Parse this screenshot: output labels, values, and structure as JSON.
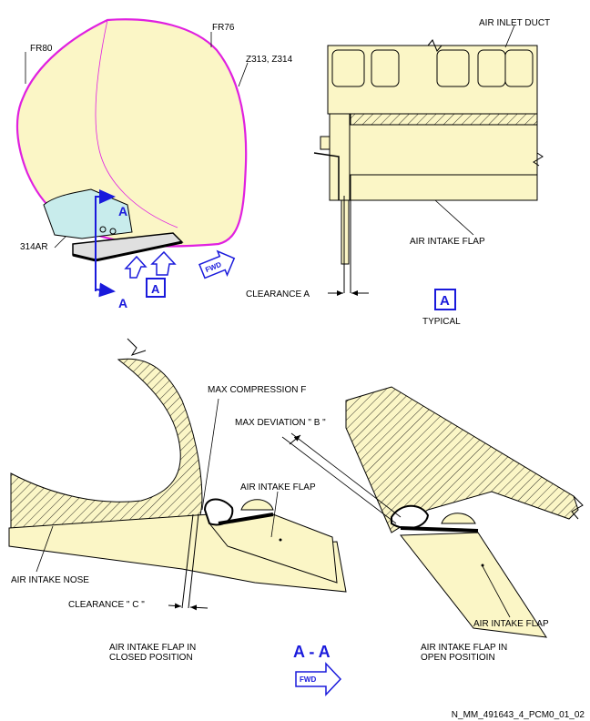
{
  "top_left": {
    "frame_labels": [
      "FR80",
      "FR76",
      "Z313, Z314",
      "314AR"
    ],
    "section_marks": [
      "A",
      "A"
    ],
    "detail_box": "A",
    "fwd_badge": "FWD"
  },
  "detail_a": {
    "labels": [
      "AIR INLET DUCT",
      "AIR INTAKE FLAP",
      "CLEARANCE A"
    ],
    "box_letter": "A",
    "caption": "TYPICAL"
  },
  "section_aa": {
    "labels": [
      "MAX COMPRESSION F",
      "MAX DEVIATION \" B \"",
      "AIR INTAKE FLAP",
      "AIR INTAKE NOSE",
      "CLEARANCE \" C \"",
      "AIR INTAKE FLAP"
    ],
    "closed_caption": [
      "AIR INTAKE FLAP IN",
      "CLOSED POSITION"
    ],
    "open_caption": [
      "AIR INTAKE FLAP IN",
      "OPEN POSITIOIN"
    ],
    "title": "A - A",
    "fwd_arrow": "FWD"
  },
  "footer": {
    "reference": "N_MM_491643_4_PCM0_01_02"
  },
  "colors": {
    "fill": "#fbf6c6",
    "accent_blue": "#1a1adc",
    "fuselage_magenta": "#e020e0",
    "panel_cyan": "#c8ecec"
  }
}
